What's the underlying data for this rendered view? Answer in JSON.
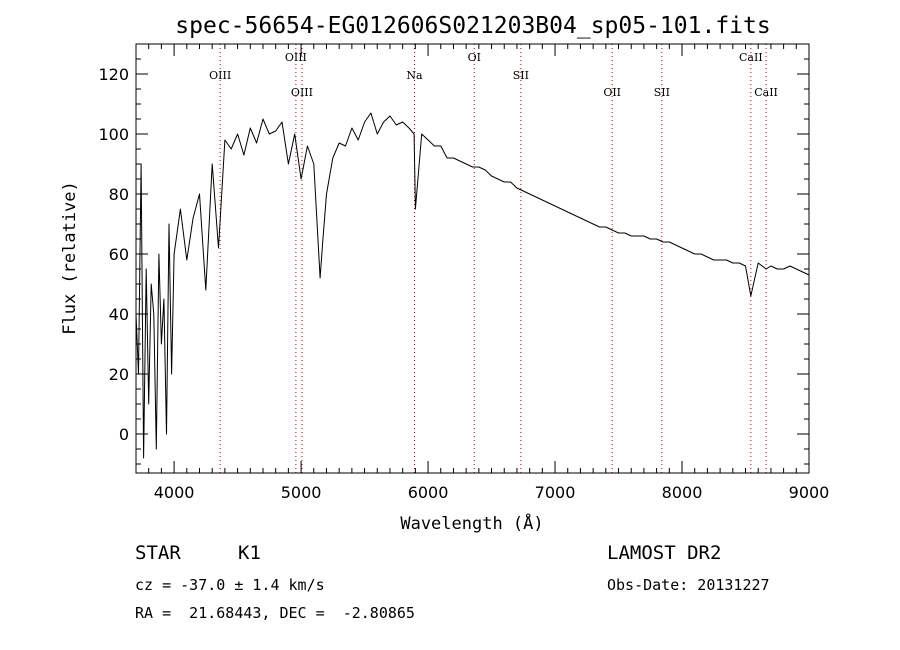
{
  "chart_data": {
    "type": "line",
    "title": "spec-56654-EG012606S021203B04_sp05-101.fits",
    "xlabel": "Wavelength (Å)",
    "ylabel": "Flux (relative)",
    "xlim": [
      3700,
      9000
    ],
    "ylim": [
      -13,
      130
    ],
    "xticks": [
      "4000",
      "5000",
      "6000",
      "7000",
      "8000",
      "9000"
    ],
    "yticks": [
      "0",
      "20",
      "40",
      "60",
      "80",
      "100",
      "120"
    ],
    "grid": false,
    "series": [
      {
        "x": [
          3700,
          3720,
          3740,
          3760,
          3780,
          3800,
          3820,
          3840,
          3860,
          3880,
          3900,
          3920,
          3940,
          3960,
          3980,
          4000,
          4050,
          4100,
          4150,
          4200,
          4250,
          4300,
          4350,
          4400,
          4450,
          4500,
          4550,
          4600,
          4650,
          4700,
          4750,
          4800,
          4850,
          4900,
          4950,
          5000,
          5050,
          5100,
          5150,
          5170,
          5200,
          5250,
          5300,
          5350,
          5400,
          5450,
          5500,
          5550,
          5600,
          5650,
          5700,
          5750,
          5800,
          5850,
          5890,
          5900,
          5950,
          6000,
          6050,
          6100,
          6150,
          6200,
          6250,
          6300,
          6350,
          6400,
          6450,
          6500,
          6550,
          6600,
          6650,
          6700,
          6750,
          6800,
          6850,
          6900,
          6950,
          7000,
          7050,
          7100,
          7150,
          7200,
          7250,
          7300,
          7350,
          7400,
          7450,
          7500,
          7550,
          7600,
          7650,
          7700,
          7750,
          7800,
          7850,
          7900,
          7950,
          8000,
          8050,
          8100,
          8150,
          8200,
          8250,
          8300,
          8350,
          8400,
          8450,
          8500,
          8542,
          8600,
          8662,
          8700,
          8750,
          8800,
          8850,
          8900,
          8950,
          9000
        ],
        "y": [
          40,
          20,
          90,
          -8,
          55,
          10,
          50,
          40,
          -5,
          60,
          30,
          45,
          0,
          70,
          20,
          60,
          75,
          58,
          72,
          80,
          48,
          90,
          62,
          98,
          95,
          100,
          93,
          102,
          97,
          105,
          100,
          101,
          104,
          90,
          100,
          85,
          96,
          90,
          52,
          64,
          80,
          92,
          97,
          96,
          102,
          98,
          104,
          107,
          100,
          104,
          106,
          103,
          104,
          102,
          100,
          75,
          100,
          98,
          96,
          96,
          92,
          92,
          91,
          90,
          89,
          89,
          88,
          86,
          85,
          84,
          84,
          82,
          81,
          80,
          79,
          78,
          77,
          76,
          75,
          74,
          73,
          72,
          71,
          70,
          69,
          69,
          68,
          67,
          67,
          66,
          66,
          66,
          65,
          65,
          64,
          64,
          63,
          62,
          61,
          60,
          60,
          59,
          58,
          58,
          58,
          57,
          57,
          56,
          46,
          57,
          55,
          56,
          55,
          55,
          56,
          55,
          54,
          53
        ]
      }
    ],
    "spectral_lines": [
      {
        "label": "OIII",
        "wavelength": 4363,
        "row": 2
      },
      {
        "label": "OIII",
        "wavelength": 4959,
        "row": 1
      },
      {
        "label": "OIII",
        "wavelength": 5007,
        "row": 3
      },
      {
        "label": "Na",
        "wavelength": 5893,
        "row": 2
      },
      {
        "label": "OI",
        "wavelength": 6364,
        "row": 1
      },
      {
        "label": "SII",
        "wavelength": 6731,
        "row": 2
      },
      {
        "label": "OII",
        "wavelength": 7450,
        "row": 3
      },
      {
        "label": "SII",
        "wavelength": 7841,
        "row": 3
      },
      {
        "label": "CaII",
        "wavelength": 8542,
        "row": 1
      },
      {
        "label": "CaII",
        "wavelength": 8662,
        "row": 3
      }
    ]
  },
  "info": {
    "object_type": "STAR",
    "subclass": "K1",
    "survey": "LAMOST DR2",
    "cz": "cz = -37.0 ± 1.4 km/s",
    "obs_date": "Obs-Date: 20131227",
    "coords": "RA =  21.68443, DEC =  -2.80865"
  }
}
